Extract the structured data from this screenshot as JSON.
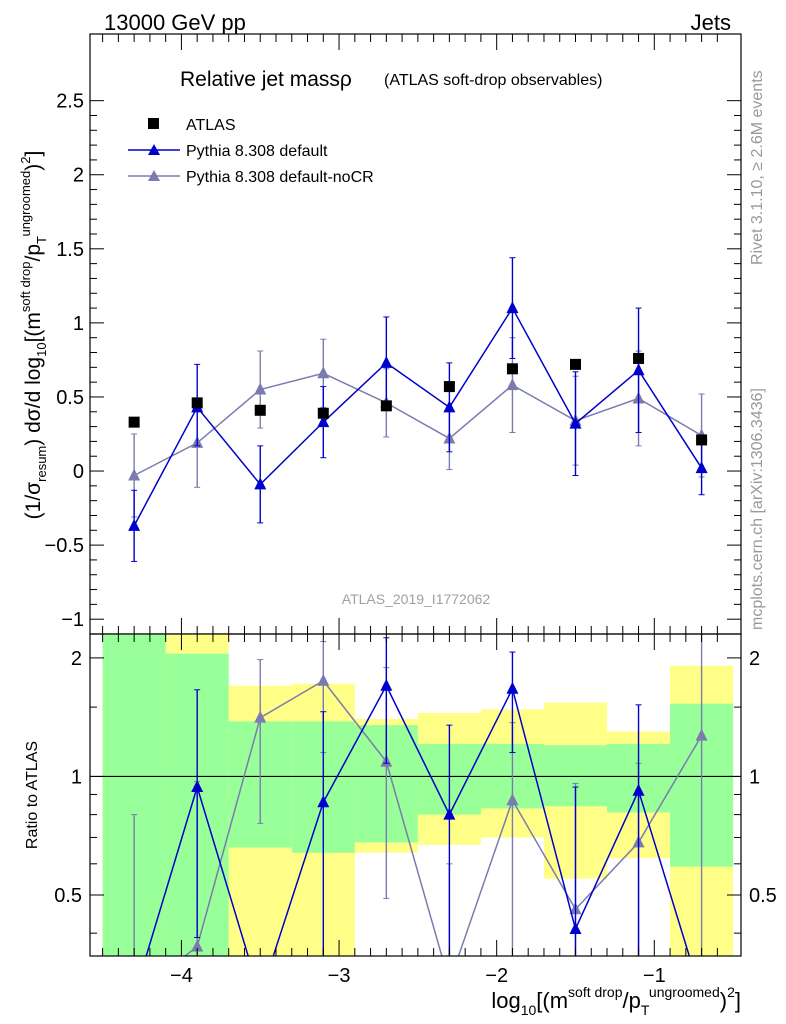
{
  "header": {
    "left": "13000 GeV pp",
    "right": "Jets"
  },
  "side_labels": {
    "rivet": "Rivet 3.1.10, ≥ 2.6M events",
    "source": "mcplots.cern.ch [arXiv:1306.3436]"
  },
  "colors": {
    "atlas": "#000000",
    "default": "#0000cc",
    "noCR": "#7b7bb0",
    "band_inner": "#99ff99",
    "band_outer": "#ffff88",
    "watermark": "#a0a0a0"
  },
  "chart_data": [
    {
      "type": "line",
      "title": "Relative jet massρ",
      "subtitle": "(ATLAS soft-drop observables)",
      "watermark": "ATLAS_2019_I1772062",
      "ylabel": "(1/σresum) dσ/d log10[(m soft drop/pT ungroomed)2]",
      "ylim": [
        -1.1,
        2.95
      ],
      "yticks": [
        -1,
        -0.5,
        0,
        0.5,
        1,
        1.5,
        2,
        2.5
      ],
      "yticklabels": [
        "−1",
        "−0.5",
        "0",
        "0.5",
        "1",
        "1.5",
        "2",
        "2.5"
      ],
      "xlim": [
        -4.58,
        -0.45
      ],
      "legend_position": "top-left",
      "x": [
        -4.3,
        -3.9,
        -3.5,
        -3.1,
        -2.7,
        -2.3,
        -1.9,
        -1.5,
        -1.1,
        -0.7
      ],
      "series": [
        {
          "name": "ATLAS",
          "marker": "square",
          "values": [
            0.33,
            0.46,
            0.41,
            0.39,
            0.44,
            0.57,
            0.69,
            0.72,
            0.76,
            0.21
          ]
        },
        {
          "name": "Pythia 8.308 default",
          "marker": "triangle",
          "values": [
            -0.37,
            0.43,
            -0.09,
            0.33,
            0.73,
            0.43,
            1.1,
            0.32,
            0.68,
            0.02
          ],
          "err_lo": [
            0.24,
            0.26,
            0.26,
            0.24,
            0.3,
            0.3,
            0.34,
            0.35,
            0.42,
            0.18
          ],
          "err_hi": [
            0.24,
            0.29,
            0.26,
            0.24,
            0.31,
            0.3,
            0.34,
            0.35,
            0.42,
            0.18
          ]
        },
        {
          "name": "Pythia 8.308 default-noCR",
          "marker": "triangle",
          "values": [
            -0.03,
            0.19,
            0.55,
            0.66,
            0.46,
            0.22,
            0.58,
            0.34,
            0.49,
            0.24
          ],
          "err_lo": [
            0.28,
            0.3,
            0.26,
            0.23,
            0.23,
            0.21,
            0.32,
            0.3,
            0.32,
            0.28
          ],
          "err_hi": [
            0.28,
            0.3,
            0.26,
            0.23,
            0.23,
            0.21,
            0.32,
            0.3,
            0.32,
            0.28
          ]
        }
      ]
    },
    {
      "type": "line",
      "ylabel": "Ratio to ATLAS",
      "ylim": [
        0.35,
        2.3
      ],
      "yticks": [
        0.5,
        1,
        2
      ],
      "yticklabels": [
        "0.5",
        "1",
        "2"
      ],
      "xlim": [
        -4.58,
        -0.45
      ],
      "xticks": [
        -4,
        -3,
        -2,
        -1
      ],
      "xticklabels": [
        "−4",
        "−3",
        "−2",
        "−1"
      ],
      "xlabel": "log10[(m soft drop/pT ungroomed)2]",
      "reference": 1,
      "bin_edges": [
        -4.5,
        -4.1,
        -3.7,
        -3.3,
        -2.9,
        -2.5,
        -2.1,
        -1.7,
        -1.3,
        -0.9,
        -0.5
      ],
      "band_inner": [
        [
          0.35,
          2.3
        ],
        [
          0.35,
          2.05
        ],
        [
          0.66,
          1.38
        ],
        [
          0.64,
          1.38
        ],
        [
          0.68,
          1.35
        ],
        [
          0.8,
          1.21
        ],
        [
          0.83,
          1.21
        ],
        [
          0.84,
          1.2
        ],
        [
          0.81,
          1.21
        ],
        [
          0.59,
          1.53
        ]
      ],
      "band_outer": [
        [
          0.35,
          2.3
        ],
        [
          0.35,
          2.3
        ],
        [
          0.35,
          1.7
        ],
        [
          0.35,
          1.72
        ],
        [
          0.64,
          1.4
        ],
        [
          0.67,
          1.45
        ],
        [
          0.7,
          1.48
        ],
        [
          0.55,
          1.54
        ],
        [
          0.62,
          1.3
        ],
        [
          0.35,
          1.91
        ]
      ],
      "series": [
        {
          "name": "Pythia 8.308 default",
          "values": [
            null,
            0.94,
            null,
            0.86,
            1.7,
            0.8,
            1.67,
            0.41,
            0.92,
            null
          ],
          "err_lo": [
            0,
            0.55,
            0,
            0.6,
            0.62,
            0.5,
            0.52,
            0.48,
            0.6,
            0
          ],
          "err_hi": [
            0,
            0.72,
            0,
            0.6,
            0.55,
            0.55,
            0.4,
            0.53,
            0.6,
            0
          ]
        },
        {
          "name": "Pythia 8.308 default-noCR",
          "values": [
            null,
            0.37,
            1.41,
            1.75,
            1.09,
            0.3,
            0.87,
            0.46,
            0.68,
            1.27
          ],
          "err_lo": [
            0,
            0.4,
            0.65,
            0.6,
            0.6,
            0.3,
            0.55,
            0.45,
            0.45,
            1.0
          ],
          "err_hi": [
            0,
            0.6,
            0.57,
            0.45,
            0.8,
            0.3,
            0.5,
            0.5,
            0.4,
            1.2
          ]
        }
      ],
      "extra_errorbar": {
        "x": -4.3,
        "lo": 0.35,
        "hi": 0.8
      }
    }
  ]
}
